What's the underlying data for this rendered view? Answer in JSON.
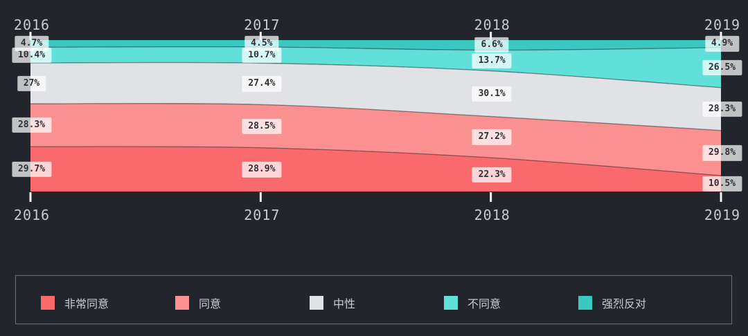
{
  "chart_data": {
    "type": "area",
    "variant": "stacked-percentage",
    "title": "",
    "x": [
      "2016",
      "2017",
      "2018",
      "2019"
    ],
    "x_axis_top": true,
    "x_axis_bottom": true,
    "ylim": [
      0,
      100
    ],
    "grid": false,
    "legend_position": "bottom",
    "series": [
      {
        "key": "strongly-agree",
        "name": "非常同意",
        "color": "#fa696c",
        "values": [
          29.7,
          28.9,
          22.3,
          10.5
        ],
        "labels": [
          "29.7%",
          "28.9%",
          "22.3%",
          "10.5%"
        ]
      },
      {
        "key": "agree",
        "name": "同意",
        "color": "#fa908f",
        "values": [
          28.3,
          28.5,
          27.2,
          29.8
        ],
        "labels": [
          "28.3%",
          "28.5%",
          "27.2%",
          "29.8%"
        ]
      },
      {
        "key": "neutral",
        "name": "中性",
        "color": "#e1e2e5",
        "values": [
          27.0,
          27.4,
          30.1,
          28.3
        ],
        "labels": [
          "27%",
          "27.4%",
          "30.1%",
          "28.3%"
        ]
      },
      {
        "key": "disagree",
        "name": "不同意",
        "color": "#60e0d8",
        "values": [
          10.4,
          10.7,
          13.7,
          26.5
        ],
        "labels": [
          "10.4%",
          "10.7%",
          "13.7%",
          "26.5%"
        ]
      },
      {
        "key": "strongly-oppose",
        "name": "强烈反对",
        "color": "#3ac8c0",
        "values": [
          4.7,
          4.5,
          6.6,
          4.9
        ],
        "labels": [
          "4.7%",
          "4.5%",
          "6.6%",
          "4.9%"
        ]
      }
    ]
  },
  "colors": {
    "background": "#23252c",
    "tick": "#f2f3f5",
    "axis_label": "#c7cad0",
    "value_label_bg": "rgba(255,255,255,0.72)",
    "value_label_text": "#2e3036",
    "series_boundary": "rgba(33,36,43,0.45)",
    "legend_border": "#6b6e75",
    "legend_text": "#c9ccd1"
  }
}
